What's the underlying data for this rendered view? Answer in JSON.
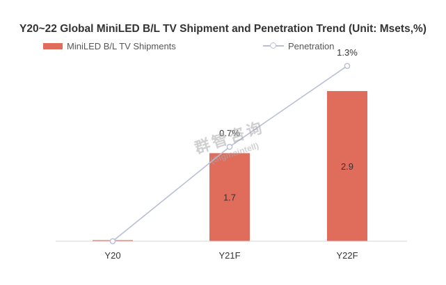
{
  "chart_data": {
    "type": "bar",
    "title": "Y20~22 Global MiniLED B/L TV Shipment and Penetration Trend (Unit: Msets,%)",
    "categories": [
      "Y20",
      "Y21F",
      "Y22F"
    ],
    "series": [
      {
        "name": "MiniLED B/L TV Shipments",
        "type": "bar",
        "values": [
          0.02,
          1.7,
          2.9
        ],
        "labels": [
          "",
          "1.7",
          "2.9"
        ],
        "color": "#e06c5b"
      },
      {
        "name": "Penetration",
        "type": "line",
        "values": [
          0.0,
          0.7,
          1.3
        ],
        "labels": [
          "",
          "0.7%",
          "1.3%"
        ],
        "color": "#b9bfd6"
      }
    ],
    "legend_position": "top",
    "grid": false
  },
  "watermark": {
    "cn": "群智咨询",
    "en": "(Sigmaintell)"
  }
}
